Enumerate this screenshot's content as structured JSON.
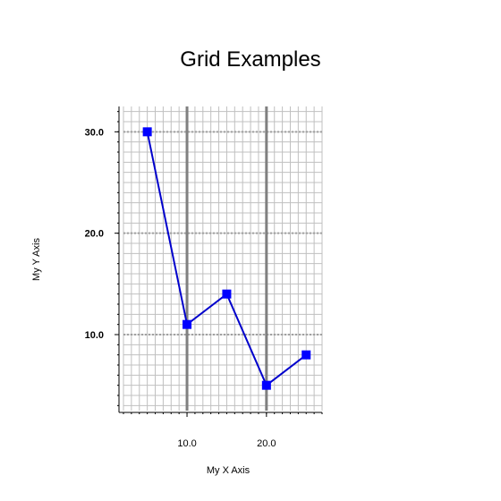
{
  "chart_data": {
    "type": "line",
    "title": "Grid Examples",
    "xlabel": "My X Axis",
    "ylabel": "My Y Axis",
    "xlim": [
      2,
      27
    ],
    "ylim": [
      2.5,
      32.5
    ],
    "x_ticks": [
      {
        "value": 10,
        "label": "10.0"
      },
      {
        "value": 20,
        "label": "20.0"
      }
    ],
    "y_ticks": [
      {
        "value": 10,
        "label": "10.0"
      },
      {
        "value": 20,
        "label": "20.0"
      },
      {
        "value": 30,
        "label": "30.0"
      }
    ],
    "x_minor_step": 1,
    "y_minor_step": 1,
    "grid": true,
    "series": [
      {
        "x": [
          5,
          10,
          15,
          20,
          25
        ],
        "values": [
          30,
          11,
          14,
          5,
          8
        ],
        "color": "#0000ff",
        "marker": "square"
      }
    ]
  },
  "colors": {
    "series_line": "#0000cc",
    "series_marker": "#0000ff",
    "minor_grid": "#c0c0c0",
    "major_x_grid": "#808080",
    "major_y_grid": "#a0a0a0",
    "axis": "#000000"
  }
}
